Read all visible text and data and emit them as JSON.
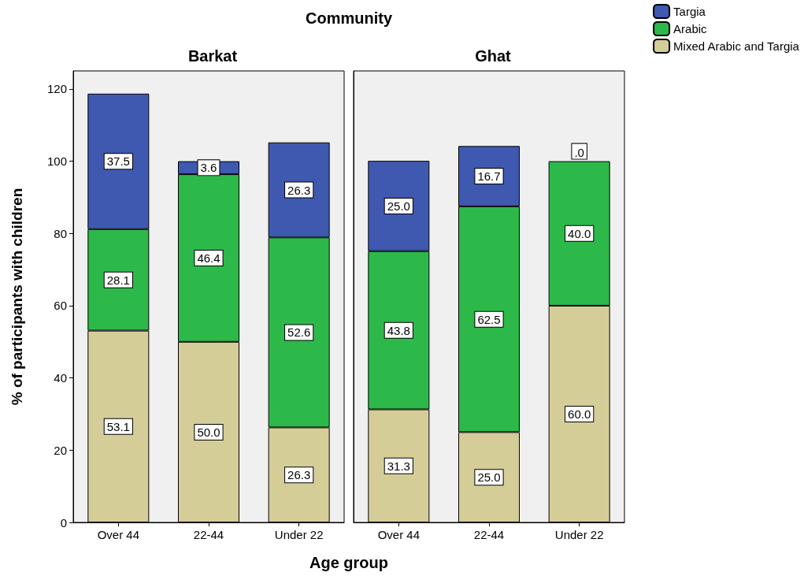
{
  "chart_data": [
    {
      "type": "bar",
      "title": "Barkat",
      "xlabel": "Age group",
      "ylabel": "% of participants with children",
      "annotations": [
        "Community"
      ],
      "categories": [
        "Over 44",
        "22-44",
        "Under 22"
      ],
      "stacked": true,
      "ylim": [
        0,
        125
      ],
      "yticks": [
        0,
        20,
        40,
        60,
        80,
        100,
        120
      ],
      "grid": false,
      "legend": false,
      "series": [
        {
          "color": "#d5cd98",
          "values": [
            53.1,
            50.0,
            26.3
          ],
          "value_labels": [
            "53.1",
            "50.0",
            "26.3"
          ]
        },
        {
          "color": "#2db84a",
          "values": [
            28.1,
            46.4,
            52.6
          ],
          "value_labels": [
            "28.1",
            "46.4",
            "52.6"
          ]
        },
        {
          "color": "#3f58b0",
          "values": [
            37.5,
            3.6,
            26.3
          ],
          "value_labels": [
            "37.5",
            "3.6",
            "26.3"
          ]
        }
      ]
    },
    {
      "type": "bar",
      "title": "Ghat",
      "categories": [
        "Over 44",
        "22-44",
        "Under 22"
      ],
      "stacked": true,
      "ylim": [
        0,
        125
      ],
      "yticks": [
        0,
        20,
        40,
        60,
        80,
        100,
        120
      ],
      "grid": false,
      "legend": "top right",
      "tick_labels": "x",
      "series": [
        {
          "name": "Mixed Arabic and Targia",
          "color": "#d5cd98",
          "values": [
            31.3,
            25.0,
            60.0
          ],
          "value_labels": [
            "31.3",
            "25.0",
            "60.0"
          ]
        },
        {
          "name": "Arabic",
          "color": "#2db84a",
          "values": [
            43.8,
            62.5,
            40.0
          ],
          "value_labels": [
            "43.8",
            "62.5",
            "40.0"
          ]
        },
        {
          "name": "Targia",
          "color": "#3f58b0",
          "values": [
            25.0,
            16.7,
            0
          ],
          "value_labels": [
            "25.0",
            "16.7",
            ".0"
          ]
        }
      ]
    }
  ]
}
